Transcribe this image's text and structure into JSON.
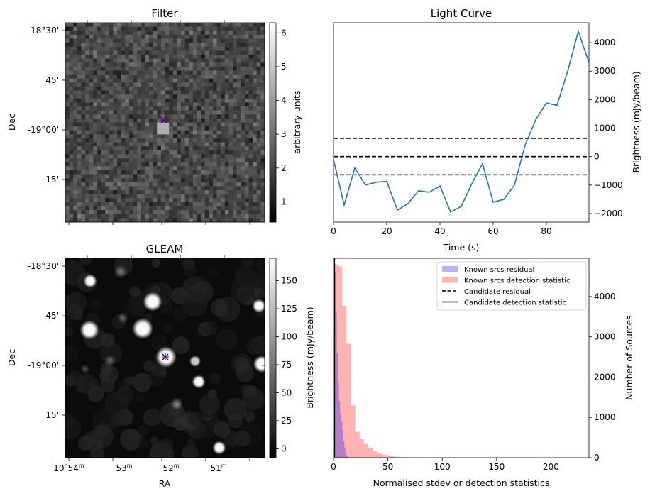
{
  "chart_data": [
    {
      "type": "heatmap",
      "title": "Filter",
      "xlabel": "",
      "ylabel": "Dec",
      "ytick_labels": [
        "-18°30'",
        "45'",
        "-19°00'",
        "15'"
      ],
      "colorbar": {
        "label": "arbitrary units",
        "range": [
          0.4,
          6.3
        ],
        "ticks": [
          1,
          2,
          3,
          4,
          5,
          6
        ]
      },
      "colormap": "gray",
      "grid_size": [
        50,
        50
      ],
      "markers": [
        {
          "symbol": "x",
          "color": "#0000ff"
        },
        {
          "symbol": "+",
          "color": "#ff0000"
        }
      ]
    },
    {
      "type": "line",
      "title": "Light Curve",
      "xlabel": "Time (s)",
      "ylabel": "Brightness (mJy/beam)",
      "xlim": [
        0,
        96
      ],
      "ylim": [
        -2300,
        4700
      ],
      "xticks": [
        0,
        20,
        40,
        60,
        80
      ],
      "yticks": [
        -2000,
        -1000,
        0,
        1000,
        2000,
        3000,
        4000
      ],
      "x": [
        0,
        4,
        8,
        12,
        16,
        20,
        24,
        28,
        32,
        36,
        40,
        44,
        48,
        52,
        56,
        60,
        64,
        68,
        72,
        76,
        80,
        84,
        88,
        92,
        96
      ],
      "series": [
        {
          "name": "",
          "color": "#1f77b4",
          "values": [
            -100,
            -1700,
            -400,
            -1000,
            -900,
            -870,
            -1880,
            -1650,
            -1200,
            -1250,
            -1030,
            -1950,
            -1750,
            -950,
            -250,
            -1600,
            -1500,
            -1000,
            400,
            1300,
            1880,
            1800,
            3000,
            4400,
            3300
          ]
        }
      ],
      "hlines": [
        {
          "y": 640,
          "style": "dashed"
        },
        {
          "y": 0,
          "style": "dashed"
        },
        {
          "y": -640,
          "style": "dashed"
        }
      ]
    },
    {
      "type": "heatmap",
      "title": "GLEAM",
      "xlabel": "RA",
      "ylabel": "Dec",
      "xtick_labels": [
        {
          "main": "10",
          "sup1": "h",
          "mid": "54",
          "sup2": "m"
        },
        {
          "main": "53",
          "sup1": "",
          "mid": "",
          "sup2": "m"
        },
        {
          "main": "52",
          "sup1": "",
          "mid": "",
          "sup2": "m"
        },
        {
          "main": "51",
          "sup1": "",
          "mid": "",
          "sup2": "m"
        }
      ],
      "ytick_labels": [
        "-18°30'",
        "45'",
        "-19°00'",
        "15'"
      ],
      "colorbar": {
        "label": "Brightness (mJy/beam)",
        "range": [
          -8,
          170
        ],
        "ticks": [
          0,
          25,
          50,
          75,
          100,
          125,
          150
        ]
      },
      "colormap": "gray",
      "markers": [
        {
          "symbol": "x",
          "color": "#0000ff"
        },
        {
          "symbol": "+",
          "color": "#ff0000"
        }
      ]
    },
    {
      "type": "bar",
      "title": "",
      "xlabel": "Normalised stdev or detection statistics",
      "ylabel": "Number of Sources",
      "xlim": [
        0,
        235
      ],
      "ylim": [
        0,
        4950
      ],
      "xticks": [
        0,
        50,
        100,
        150,
        200
      ],
      "yticks": [
        0,
        1000,
        2000,
        3000,
        4000
      ],
      "bin_width": 4,
      "legend_position": "top-right",
      "legend": [
        {
          "label": "Known srcs residual",
          "kind": "patch",
          "color": "#b3b3ff"
        },
        {
          "label": "Known srcs detection statistic",
          "kind": "patch",
          "color": "#ffb3b3"
        },
        {
          "label": "Candidate residual",
          "kind": "dashed-line",
          "color": "#000000"
        },
        {
          "label": "Candidate detection statistic",
          "kind": "solid-line",
          "color": "#000000"
        }
      ],
      "series": [
        {
          "name": "Known srcs detection statistic",
          "color": "#ff0000",
          "alpha": 0.3,
          "bin_starts": [
            0,
            4,
            8,
            12,
            16,
            20,
            24,
            28,
            32,
            36,
            40,
            44,
            48,
            52,
            56,
            60,
            64,
            68,
            72,
            76,
            80,
            84,
            88,
            92,
            96,
            100,
            104,
            108,
            112,
            116,
            120,
            124,
            128,
            132,
            136,
            140,
            144,
            148,
            152,
            220
          ],
          "values": [
            4800,
            4750,
            3770,
            2830,
            1300,
            640,
            460,
            340,
            250,
            160,
            110,
            80,
            60,
            40,
            25,
            15,
            10,
            10,
            8,
            5,
            5,
            4,
            3,
            3,
            3,
            2,
            2,
            2,
            2,
            2,
            1,
            1,
            1,
            1,
            1,
            1,
            1,
            1,
            1,
            4
          ]
        },
        {
          "name": "Known srcs residual",
          "color": "#0000ff",
          "alpha": 0.3,
          "bins": [
            [
              0,
              1,
              2000
            ],
            [
              1,
              2,
              4600
            ],
            [
              2,
              3,
              3600
            ],
            [
              3,
              4,
              2600
            ],
            [
              4,
              5,
              1900
            ],
            [
              5,
              6,
              1400
            ],
            [
              6,
              7,
              1100
            ],
            [
              7,
              8,
              900
            ],
            [
              8,
              9,
              700
            ],
            [
              9,
              10,
              400
            ],
            [
              10,
              11,
              250
            ],
            [
              11,
              12,
              100
            ],
            [
              12,
              13,
              40
            ],
            [
              13,
              14,
              20
            ]
          ]
        }
      ],
      "candidate_lines": [
        {
          "x": 0.6,
          "style": "dashed"
        },
        {
          "x": 0.8,
          "style": "solid"
        }
      ]
    }
  ]
}
